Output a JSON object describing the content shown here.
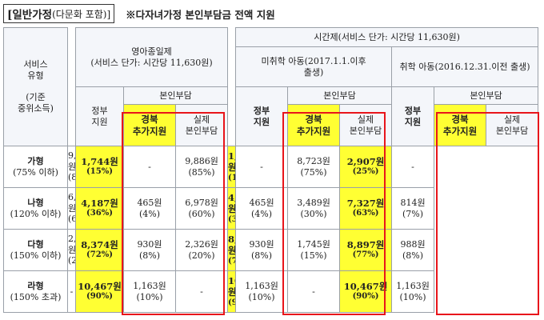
{
  "header": {
    "title_main": "[일반가정",
    "title_sub": "(다문화 포함)]",
    "note": "※다자녀가정 본인부담금 전액 지원"
  },
  "table": {
    "service_type_label": "서비스\n유형\n\n(기준\n중위소득)",
    "group_fullday": {
      "title": "영아종일제\n(서비스 단가: 시간당 11,630원)"
    },
    "group_hourly": {
      "title": "시간제(서비스 단가: 시간당 11,630원)"
    },
    "sub_preschool": "미취학 아동(2017.1.1.이후\n출생)",
    "sub_school": "취학 아동(2016.12.31.이전 출생)",
    "self_pay": "본인부담",
    "gov_support": "정부\n지원",
    "gb_support": "경북\n추가지원",
    "actual_pay": "실제\n본인부담",
    "rows": [
      {
        "type": "가형",
        "income": "(75% 이하)",
        "fd_gov": "9,886원",
        "fd_gov_pct": "(85%)",
        "fd_gb": "1,744원",
        "fd_gb_pct": "(15%)",
        "fd_act": "-",
        "fd_act_pct": "",
        "pr_gov": "9,886원",
        "pr_gov_pct": "(85%)",
        "pr_gb": "1,744원",
        "pr_gb_pct": "(15%)",
        "pr_act": "-",
        "pr_act_pct": "",
        "sc_gov": "8,723원",
        "sc_gov_pct": "(75%)",
        "sc_gb": "2,907원",
        "sc_gb_pct": "(25%)",
        "sc_act": "-",
        "sc_act_pct": ""
      },
      {
        "type": "나형",
        "income": "(120% 이하)",
        "fd_gov": "6,978원",
        "fd_gov_pct": "(60%)",
        "fd_gb": "4,187원",
        "fd_gb_pct": "(36%)",
        "fd_act": "465원",
        "fd_act_pct": "(4%)",
        "pr_gov": "6,978원",
        "pr_gov_pct": "(60%)",
        "pr_gb": "4,187원",
        "pr_gb_pct": "(36%)",
        "pr_act": "465원",
        "pr_act_pct": "(4%)",
        "sc_gov": "3,489원",
        "sc_gov_pct": "(30%)",
        "sc_gb": "7,327원",
        "sc_gb_pct": "(63%)",
        "sc_act": "814원",
        "sc_act_pct": "(7%)"
      },
      {
        "type": "다형",
        "income": "(150% 이하)",
        "fd_gov": "2,326원",
        "fd_gov_pct": "(20%)",
        "fd_gb": "8,374원",
        "fd_gb_pct": "(72%)",
        "fd_act": "930원",
        "fd_act_pct": "(8%)",
        "pr_gov": "2,326원",
        "pr_gov_pct": "(20%)",
        "pr_gb": "8,374원",
        "pr_gb_pct": "(72%)",
        "pr_act": "930원",
        "pr_act_pct": "(8%)",
        "sc_gov": "1,745원",
        "sc_gov_pct": "(15%)",
        "sc_gb": "8,897원",
        "sc_gb_pct": "(77%)",
        "sc_act": "988원",
        "sc_act_pct": "(8%)"
      },
      {
        "type": "라형",
        "income": "(150% 초과)",
        "fd_gov": "-",
        "fd_gov_pct": "",
        "fd_gb": "10,467원",
        "fd_gb_pct": "(90%)",
        "fd_act": "1,163원",
        "fd_act_pct": "(10%)",
        "pr_gov": "-",
        "pr_gov_pct": "",
        "pr_gb": "10,467원",
        "pr_gb_pct": "(90%)",
        "pr_act": "1,163원",
        "pr_act_pct": "(10%)",
        "sc_gov": "-",
        "sc_gov_pct": "",
        "sc_gb": "10,467원",
        "sc_gb_pct": "(90%)",
        "sc_act": "1,163원",
        "sc_act_pct": "(10%)"
      }
    ]
  },
  "colors": {
    "highlight": "#ffff33",
    "frame": "#e8151b",
    "grid": "#9aa0a8"
  }
}
